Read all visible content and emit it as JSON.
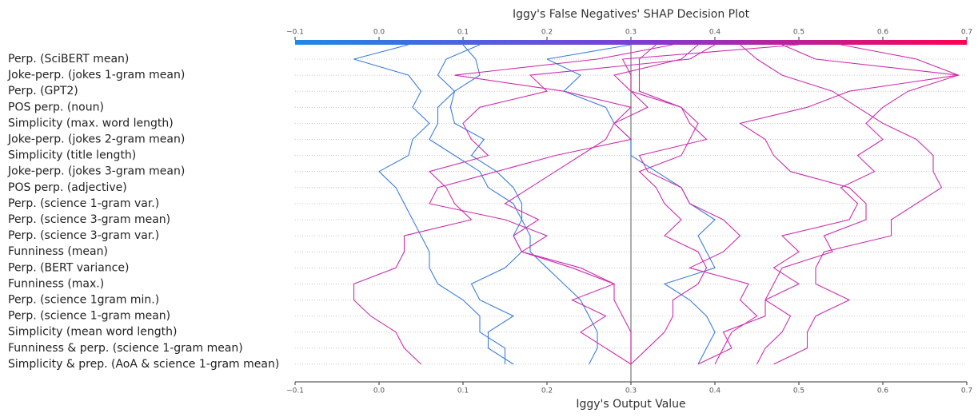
{
  "chart_data": {
    "type": "decision",
    "title": "Iggy's False Negatives' SHAP Decision Plot",
    "xlabel": "Iggy's Output Value",
    "xlim": [
      -0.1,
      0.7
    ],
    "xticks": [
      {
        "value": -0.1,
        "label": "−0.1"
      },
      {
        "value": 0,
        "label": "0.0"
      },
      0.1,
      0.2,
      0.3,
      0.4,
      0.5,
      0.6,
      0.7
    ],
    "base_value": 0.3,
    "colormap": [
      "#1e88e5",
      "#7b3fd6",
      "#ff0052"
    ],
    "grid": true,
    "categories": [
      "Perp. (SciBERT mean)",
      "Joke-perp. (jokes 1-gram mean)",
      "Perp. (GPT2)",
      "POS perp. (noun)",
      "Simplicity (max. word length)",
      "Joke-perp. (jokes 2-gram mean)",
      "Simplicity (title length)",
      "Joke-perp. (jokes 3-gram mean)",
      "POS perp. (adjective)",
      "Perp. (science 1-gram var.)",
      "Perp. (science 3-gram mean)",
      "Perp. (science 3-gram var.)",
      "Funniness (mean)",
      "Perp. (BERT variance)",
      "Funniness (max.)",
      "Perp. (science 1gram min.)",
      "Perp. (science 1-gram mean)",
      "Simplicity (mean word length)",
      "Funniness & perp. (science 1-gram mean)",
      "Simplicity & prep. (AoA & science 1-gram mean)"
    ],
    "series": [
      {
        "color": "#3b7ddd",
        "output": 0.035,
        "values": [
          -0.03,
          0.035,
          0.05,
          0.04,
          0.06,
          0.04,
          0.035,
          0.0,
          0.02,
          0.03,
          0.04,
          0.05,
          0.06,
          0.06,
          0.07,
          0.1,
          0.12,
          0.12,
          0.15,
          0.15
        ]
      },
      {
        "color": "#3b7ddd",
        "output": 0.1,
        "values": [
          0.115,
          0.12,
          0.09,
          0.085,
          0.09,
          0.125,
          0.11,
          0.14,
          0.16,
          0.17,
          0.17,
          0.18,
          0.18,
          0.2,
          0.22,
          0.24,
          0.25,
          0.26,
          0.26,
          0.25
        ]
      },
      {
        "color": "#3b7ddd",
        "output": 0.12,
        "values": [
          0.08,
          0.07,
          0.09,
          0.07,
          0.07,
          0.06,
          0.09,
          0.12,
          0.13,
          0.16,
          0.17,
          0.16,
          0.17,
          0.15,
          0.11,
          0.12,
          0.16,
          0.13,
          0.13,
          0.16
        ]
      },
      {
        "color": "#3b7ddd",
        "output": 0.3,
        "values": [
          0.2,
          0.24,
          0.22,
          0.27,
          0.28,
          0.3,
          0.3,
          0.33,
          0.36,
          0.37,
          0.4,
          0.38,
          0.39,
          0.4,
          0.34,
          0.37,
          0.39,
          0.4,
          0.39,
          0.38
        ]
      },
      {
        "color": "#cc2fae",
        "output": 0.5,
        "values": [
          0.29,
          0.3,
          0.3,
          0.36,
          0.37,
          0.39,
          0.31,
          0.32,
          0.36,
          0.37,
          0.41,
          0.43,
          0.41,
          0.37,
          0.44,
          0.43,
          0.45,
          0.42,
          0.41,
          0.4
        ]
      },
      {
        "color": "#cc2fae",
        "output": 0.33,
        "values": [
          0.31,
          0.31,
          0.31,
          0.36,
          0.38,
          0.37,
          0.36,
          0.31,
          0.33,
          0.34,
          0.36,
          0.34,
          0.38,
          0.39,
          0.38,
          0.35,
          0.35,
          0.34,
          0.32,
          0.3
        ]
      },
      {
        "color": "#cc2fae",
        "output": 0.43,
        "values": [
          0.45,
          0.48,
          0.54,
          0.57,
          0.6,
          0.64,
          0.66,
          0.66,
          0.67,
          0.64,
          0.61,
          0.61,
          0.53,
          0.52,
          0.52,
          0.56,
          0.52,
          0.51,
          0.51,
          0.47
        ]
      },
      {
        "color": "#cc2fae",
        "output": 0.55,
        "values": [
          0.64,
          0.69,
          0.63,
          0.6,
          0.58,
          0.6,
          0.57,
          0.59,
          0.55,
          0.57,
          0.56,
          0.48,
          0.5,
          0.47,
          0.5,
          0.46,
          0.46,
          0.41,
          0.42,
          0.38
        ]
      },
      {
        "color": "#cc2fae",
        "output": 0.48,
        "values": [
          0.52,
          0.69,
          0.56,
          0.51,
          0.43,
          0.46,
          0.47,
          0.49,
          0.56,
          0.58,
          0.58,
          0.53,
          0.54,
          0.48,
          0.47,
          0.46,
          0.49,
          0.48,
          0.46,
          0.45
        ]
      },
      {
        "color": "#cc2fae",
        "output": 0.35,
        "values": [
          0.26,
          0.09,
          0.22,
          0.3,
          0.28,
          0.3,
          0.21,
          0.14,
          0.07,
          0.06,
          0.15,
          0.2,
          0.17,
          0.23,
          0.28,
          0.23,
          0.27,
          0.24,
          0.27,
          0.3
        ]
      },
      {
        "color": "#cc2fae",
        "output": 0.4,
        "values": [
          0.37,
          0.18,
          0.2,
          0.12,
          0.1,
          0.11,
          0.13,
          0.06,
          0.08,
          0.09,
          0.11,
          0.03,
          0.03,
          0.02,
          -0.03,
          -0.03,
          -0.01,
          0.02,
          0.03,
          0.05
        ]
      },
      {
        "color": "#cc2fae",
        "output": 0.38,
        "values": [
          0.36,
          0.28,
          0.3,
          0.32,
          0.28,
          0.27,
          0.24,
          0.21,
          0.18,
          0.15,
          0.19,
          0.16,
          0.17,
          0.24,
          0.28,
          0.28,
          0.29,
          0.3,
          0.3,
          0.3
        ]
      }
    ]
  }
}
